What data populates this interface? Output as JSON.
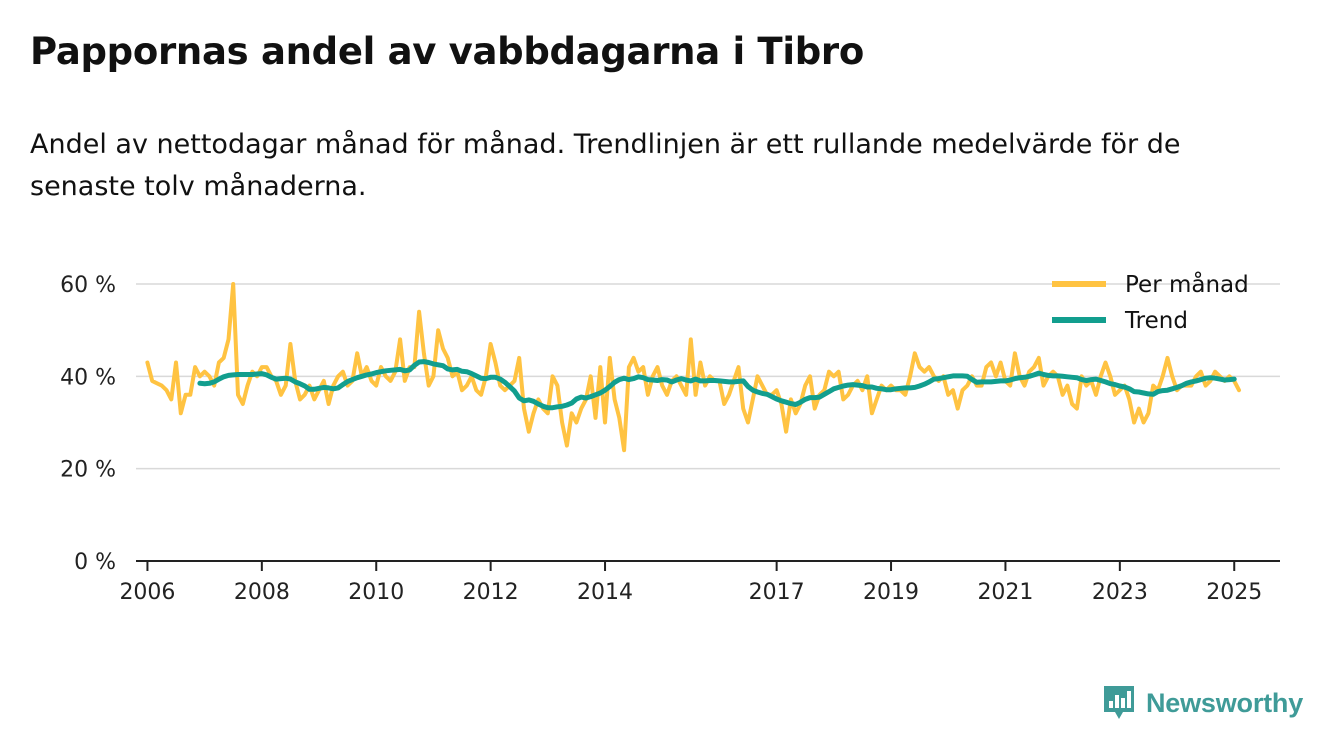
{
  "title": "Pappornas andel av vabbdagarna i Tibro",
  "subtitle": "Andel av nettodagar månad för månad. Trendlinjen är ett rullande medelvärde för de senaste tolv månaderna.",
  "brand": {
    "name": "Newsworthy",
    "color": "#3f9b98"
  },
  "colors": {
    "monthly": "#ffc342",
    "trend": "#129e8e",
    "grid": "#d9d9d9",
    "axis": "#222222"
  },
  "chart_data": {
    "type": "line",
    "title": "Pappornas andel av vabbdagarna i Tibro",
    "xlabel": "",
    "ylabel": "",
    "ylim": [
      0,
      60
    ],
    "xlim": [
      2005.8,
      2025.8
    ],
    "y_ticks": [
      0,
      20,
      40,
      60
    ],
    "y_tick_labels": [
      "0 %",
      "20 %",
      "40 %",
      "60 %"
    ],
    "x_ticks": [
      2006,
      2008,
      2010,
      2012,
      2014,
      2017,
      2019,
      2021,
      2023,
      2025
    ],
    "x_tick_labels": [
      "2006",
      "2008",
      "2010",
      "2012",
      "2014",
      "2017",
      "2019",
      "2021",
      "2023",
      "2025"
    ],
    "grid": "horizontal",
    "legend_position": "top-right",
    "series": [
      {
        "name": "Per månad",
        "start": 2006.0,
        "step": 0.08333,
        "values": [
          43,
          39,
          38.5,
          38,
          37,
          35,
          43,
          32,
          36,
          36,
          42,
          40,
          41,
          40,
          38,
          43,
          44,
          48,
          60,
          36,
          34,
          38,
          41,
          40,
          42,
          42,
          40,
          39,
          36,
          38,
          47,
          39,
          35,
          36,
          38,
          35,
          37,
          39,
          34,
          38,
          40,
          41,
          38,
          39,
          45,
          40,
          42,
          39,
          38,
          42,
          40,
          39,
          41,
          48,
          39,
          42,
          42,
          54,
          45,
          38,
          40,
          50,
          46,
          44,
          40,
          41,
          37,
          38,
          40,
          37,
          36,
          40,
          47,
          43,
          38,
          37,
          38,
          39,
          44,
          33,
          28,
          32,
          35,
          33,
          32,
          40,
          38,
          30,
          25,
          32,
          30,
          33,
          35,
          40,
          31,
          42,
          30,
          44,
          35,
          31,
          24,
          42,
          44,
          41,
          42,
          36,
          40,
          42,
          38,
          36,
          39,
          40,
          38,
          36,
          48,
          36,
          43,
          38,
          40,
          39,
          39,
          34,
          36,
          39,
          42,
          33,
          30,
          35,
          40,
          38,
          36,
          36,
          37,
          34,
          28,
          35,
          32,
          34,
          38,
          40,
          33,
          36,
          37,
          41,
          40,
          41,
          35,
          36,
          38,
          39,
          37,
          40,
          32,
          35,
          38,
          37,
          38,
          37,
          37,
          36,
          40,
          45,
          42,
          41,
          42,
          40,
          39,
          40,
          36,
          37,
          33,
          37,
          38,
          40,
          38,
          38,
          42,
          43,
          40,
          43,
          39,
          38,
          45,
          40,
          38,
          41,
          42,
          44,
          38,
          40,
          41,
          40,
          36,
          38,
          34,
          33,
          40,
          38,
          39,
          36,
          40,
          43,
          40,
          36,
          37,
          38,
          35,
          30,
          33,
          30,
          32,
          38,
          37,
          40,
          44,
          40,
          37,
          38,
          38,
          38,
          40,
          41,
          38,
          39,
          41,
          40,
          39,
          40,
          39,
          37
        ]
      },
      {
        "name": "Trend",
        "start": 2006.917,
        "step": 0.08333,
        "values": [
          38.5,
          38.4,
          38.5,
          38.8,
          39.4,
          39.9,
          40.2,
          40.3,
          40.4,
          40.4,
          40.4,
          40.4,
          40.5,
          40.6,
          40.3,
          39.8,
          39.4,
          39.5,
          39.6,
          39.4,
          38.8,
          38.4,
          37.9,
          37.2,
          37.2,
          37.4,
          37.6,
          37.5,
          37.3,
          37.5,
          38.2,
          38.9,
          39.3,
          39.7,
          40.0,
          40.3,
          40.5,
          40.8,
          41.0,
          41.2,
          41.3,
          41.4,
          41.5,
          41.2,
          41.4,
          42.4,
          43.1,
          43.2,
          43.0,
          42.7,
          42.5,
          42.3,
          41.6,
          41.4,
          41.5,
          41.1,
          41.0,
          40.6,
          40.1,
          39.6,
          39.5,
          39.8,
          39.8,
          39.4,
          38.7,
          37.8,
          36.8,
          35.3,
          34.7,
          34.9,
          34.6,
          34.0,
          33.5,
          33.2,
          33.2,
          33.4,
          33.5,
          33.8,
          34.2,
          35.1,
          35.5,
          35.3,
          35.6,
          36.0,
          36.4,
          37.0,
          37.8,
          38.7,
          39.3,
          39.6,
          39.3,
          39.5,
          39.9,
          39.7,
          39.3,
          39.2,
          39.1,
          39.3,
          39.2,
          38.8,
          39.2,
          39.5,
          39.2,
          39.0,
          39.4,
          39.0,
          39.0,
          39.1,
          39.1,
          39.0,
          38.9,
          38.8,
          38.8,
          38.9,
          39.0,
          37.8,
          37.0,
          36.6,
          36.3,
          36.1,
          35.6,
          35.1,
          34.7,
          34.4,
          34.1,
          33.9,
          34.4,
          35.0,
          35.4,
          35.4,
          35.5,
          36.1,
          36.7,
          37.3,
          37.6,
          37.9,
          38.1,
          38.2,
          38.1,
          38.0,
          37.7,
          37.7,
          37.4,
          37.3,
          37.1,
          37.1,
          37.3,
          37.4,
          37.5,
          37.5,
          37.6,
          37.9,
          38.3,
          38.8,
          39.4,
          39.5,
          39.7,
          39.9,
          40.1,
          40.1,
          40.1,
          40.0,
          39.3,
          38.7,
          38.8,
          38.8,
          38.8,
          38.9,
          39.0,
          39.0,
          39.2,
          39.5,
          39.7,
          39.8,
          40.0,
          40.3,
          40.7,
          40.4,
          40.2,
          40.1,
          40.1,
          40.0,
          39.9,
          39.8,
          39.7,
          39.3,
          39.1,
          39.3,
          39.4,
          39.1,
          38.8,
          38.4,
          38.2,
          37.9,
          37.7,
          37.3,
          36.7,
          36.6,
          36.4,
          36.2,
          36.1,
          36.7,
          36.9,
          37.0,
          37.3,
          37.6,
          38.0,
          38.5,
          38.8,
          39.0,
          39.3,
          39.6,
          39.7,
          39.6,
          39.4,
          39.2,
          39.3,
          39.4
        ]
      }
    ]
  }
}
